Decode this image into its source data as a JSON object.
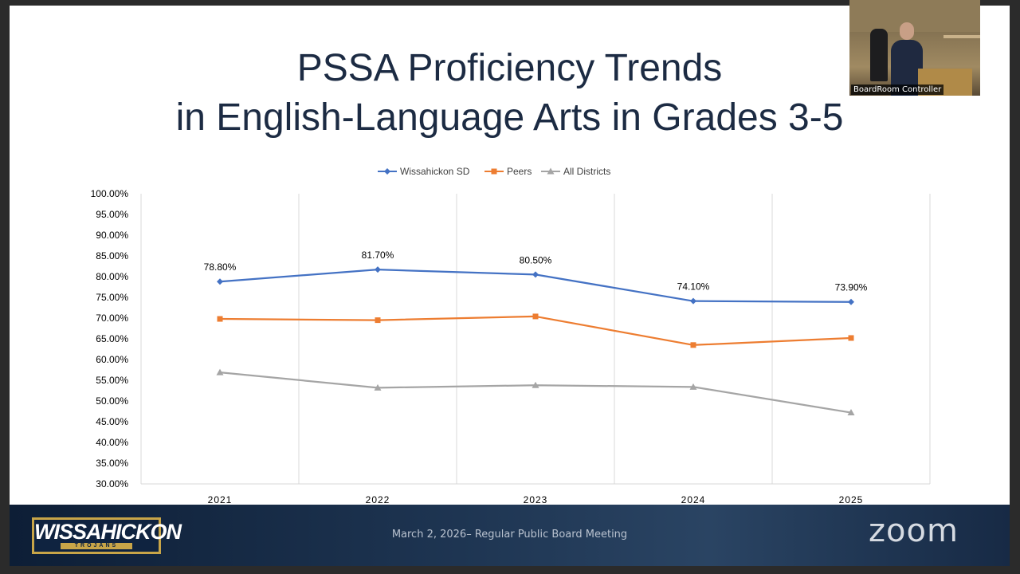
{
  "slide": {
    "title_line1": "PSSA Proficiency Trends",
    "title_line2": "in English-Language Arts in Grades 3-5"
  },
  "chart_data": {
    "type": "line",
    "title": "",
    "xlabel": "",
    "ylabel": "",
    "categories": [
      "2021",
      "2022",
      "2023",
      "2024",
      "2025"
    ],
    "ylim": [
      30,
      100
    ],
    "ytick_step": 5,
    "ytick_labels": [
      "100.00%",
      "95.00%",
      "90.00%",
      "85.00%",
      "80.00%",
      "75.00%",
      "70.00%",
      "65.00%",
      "60.00%",
      "55.00%",
      "50.00%",
      "45.00%",
      "40.00%",
      "35.00%",
      "30.00%"
    ],
    "grid": "vertical",
    "legend_position": "top",
    "series": [
      {
        "name": "Wissahickon SD",
        "color": "#4472c4",
        "marker": "diamond",
        "values": [
          78.8,
          81.7,
          80.5,
          74.1,
          73.9
        ],
        "data_labels": [
          "78.80%",
          "81.70%",
          "80.50%",
          "74.10%",
          "73.90%"
        ]
      },
      {
        "name": "Peers",
        "color": "#ed7d31",
        "marker": "square",
        "values": [
          69.8,
          69.5,
          70.4,
          63.5,
          65.2
        ]
      },
      {
        "name": "All Districts",
        "color": "#a5a5a5",
        "marker": "triangle",
        "values": [
          56.9,
          53.2,
          53.8,
          53.4,
          47.2
        ]
      }
    ]
  },
  "footer": {
    "logo_text": "WISSAHICKON",
    "logo_subtext": "TROJANS",
    "meeting_text": "March 2, 2026– Regular Public Board Meeting",
    "zoom_logo_text": "zoom"
  },
  "video": {
    "label": "BoardRoom Controller"
  }
}
